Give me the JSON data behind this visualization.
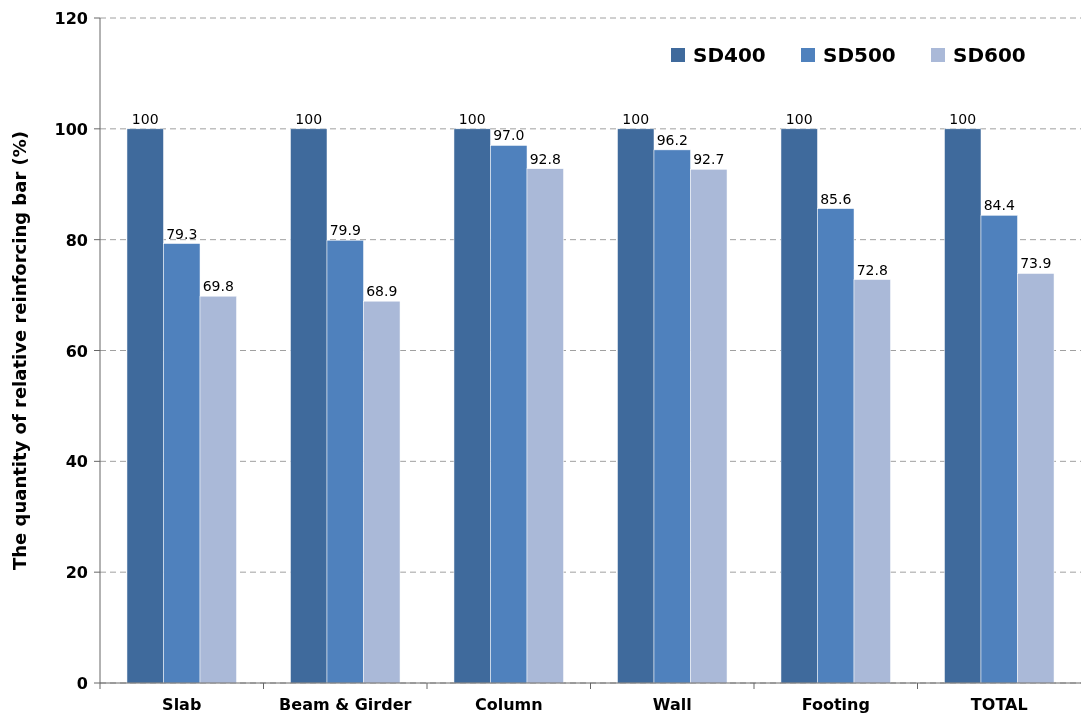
{
  "chart_data": {
    "type": "bar",
    "ylabel": "The quantity of relative reinforcing bar (%)",
    "categories": [
      "Slab",
      "Beam & Girder",
      "Column",
      "Wall",
      "Footing",
      "TOTAL"
    ],
    "series": [
      {
        "name": "SD400",
        "color": "#3f6a9c",
        "values": [
          100,
          100,
          100,
          100,
          100,
          100
        ],
        "value_labels": [
          "100",
          "100",
          "100",
          "100",
          "100",
          "100"
        ]
      },
      {
        "name": "SD500",
        "color": "#4f81bd",
        "values": [
          79.3,
          79.9,
          97.0,
          96.2,
          85.6,
          84.4
        ],
        "value_labels": [
          "79.3",
          "79.9",
          "97.0",
          "96.2",
          "85.6",
          "84.4"
        ]
      },
      {
        "name": "SD600",
        "color": "#aab9d8",
        "values": [
          69.8,
          68.9,
          92.8,
          92.7,
          72.8,
          73.9
        ],
        "value_labels": [
          "69.8",
          "68.9",
          "92.8",
          "92.7",
          "72.8",
          "73.9"
        ]
      }
    ],
    "ylim": [
      0,
      120
    ],
    "yticks": [
      0,
      20,
      40,
      60,
      80,
      100,
      120
    ],
    "grid": "y",
    "legend": "top right"
  }
}
